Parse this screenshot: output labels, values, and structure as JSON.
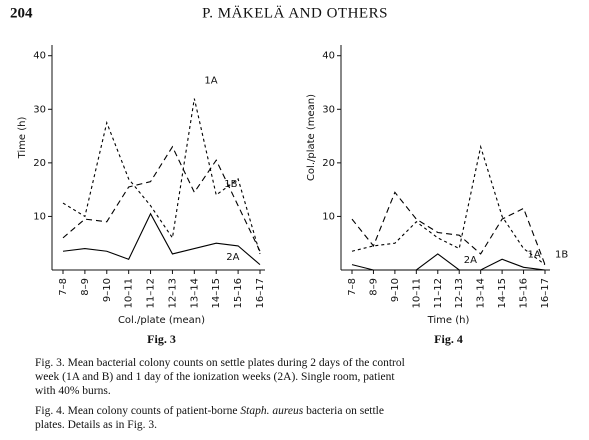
{
  "header": {
    "page": "204",
    "title": "P. MÄKELÄ AND OTHERS"
  },
  "chart_data": [
    {
      "type": "line",
      "figure": "Fig. 3",
      "ylabel": "Time (h)",
      "xlabel": "Col./plate (mean)",
      "categories": [
        "7–8",
        "8–9",
        "9–10",
        "10–11",
        "11–12",
        "12–13",
        "13–14",
        "14–15",
        "15–16",
        "16–17"
      ],
      "ylim": [
        0,
        42
      ],
      "yticks": [
        10,
        20,
        30,
        40
      ],
      "series": [
        {
          "name": "1A",
          "color": "#000000",
          "style": "dotted",
          "values": [
            12.5,
            10,
            27.5,
            17,
            12,
            6,
            32,
            14,
            17,
            3
          ]
        },
        {
          "name": "1B",
          "color": "#000000",
          "style": "dashed",
          "values": [
            6,
            9.5,
            9,
            15.5,
            16.5,
            23,
            14.5,
            20.5,
            12,
            3.5
          ]
        },
        {
          "name": "2A",
          "color": "#000000",
          "style": "solid",
          "values": [
            3.5,
            4,
            3.5,
            2,
            10.5,
            3,
            4,
            5,
            4.5,
            1
          ]
        }
      ]
    },
    {
      "type": "line",
      "figure": "Fig. 4",
      "ylabel": "Col./plate (mean)",
      "xlabel": "Time (h)",
      "categories": [
        "7–8",
        "8–9",
        "9–10",
        "10–11",
        "11–12",
        "12–13",
        "13–14",
        "14–15",
        "15–16",
        "16–17"
      ],
      "ylim": [
        0,
        42
      ],
      "yticks": [
        10,
        20,
        30,
        40
      ],
      "series": [
        {
          "name": "1A",
          "color": "#000000",
          "style": "dotted",
          "values": [
            3.5,
            4.5,
            5,
            9,
            6,
            4,
            23,
            10,
            4,
            1
          ]
        },
        {
          "name": "1B",
          "color": "#000000",
          "style": "dashed",
          "values": [
            9.5,
            4.5,
            14.5,
            9.5,
            7,
            6.5,
            3,
            9.5,
            11.5,
            1
          ]
        },
        {
          "name": "2A",
          "color": "#000000",
          "style": "solid",
          "values": [
            1,
            0,
            0,
            0,
            3,
            0,
            0,
            2,
            0.5,
            0
          ]
        }
      ]
    }
  ],
  "captions": [
    [
      "Fig. 3. Mean bacterial colony counts on settle plates during 2 days of the control week (1A and B) and 1 day of the ionization weeks (2A). Single room, patient with 40% burns."
    ],
    [
      "Fig. 4. Mean colony counts of patient-borne ",
      "Staph. aureus",
      " bacteria on settle plates. Details as in Fig. 3."
    ]
  ]
}
